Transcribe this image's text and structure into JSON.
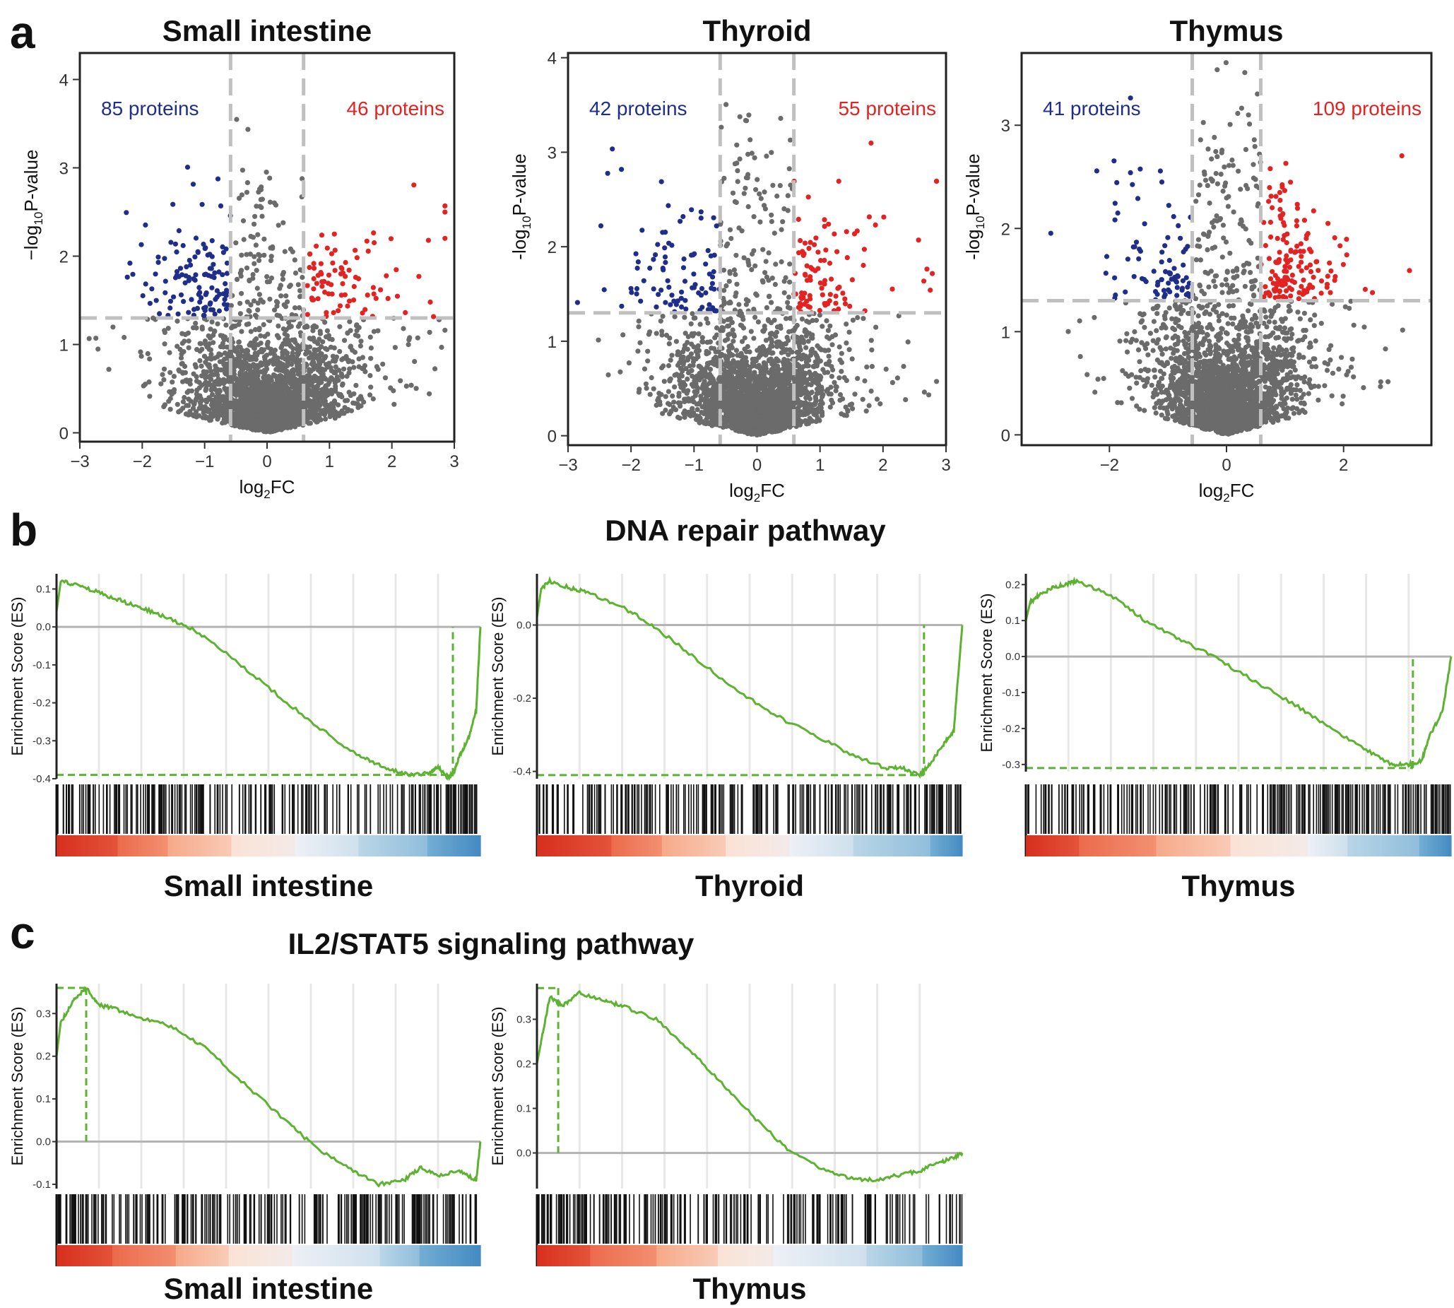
{
  "panel_labels": [
    "a",
    "b",
    "c"
  ],
  "sections": {
    "b_title": "DNA repair pathway",
    "c_title": "IL2/STAT5 signaling pathway"
  },
  "colors": {
    "down": "#1f2e8a",
    "up": "#e32222",
    "neutral": "#6b6b6b",
    "threshold": "#c0c0c0",
    "es_line": "#5db230",
    "zero_line": "#b3b3b3",
    "heat_red": "#d7301f",
    "heat_blue": "#2171b5"
  },
  "chart_data": [
    {
      "type": "scatter",
      "title": "Small intestine",
      "xlabel_base": "log",
      "xlabel_sub": "2",
      "xlabel_rest": "FC",
      "ylabel_pre": "−log",
      "ylabel_sub": "10",
      "ylabel_rest": "P-value",
      "xlim": [
        -3.0,
        3.0
      ],
      "ylim": [
        -0.1,
        4.3
      ],
      "xticks": [
        -3,
        -2,
        -1,
        0,
        1,
        2,
        3
      ],
      "yticks": [
        0,
        1,
        2,
        3,
        4
      ],
      "fc_threshold": 0.585,
      "p_threshold": 1.3,
      "down_count": "85 proteins",
      "up_count": "46 proteins",
      "max_y": 3.6,
      "seed": 11
    },
    {
      "type": "scatter",
      "title": "Thyroid",
      "xlabel_base": "log",
      "xlabel_sub": "2",
      "xlabel_rest": "FC",
      "ylabel_pre": "-log",
      "ylabel_sub": "10",
      "ylabel_rest": "P-value",
      "xlim": [
        -3.0,
        3.0
      ],
      "ylim": [
        -0.1,
        4.05
      ],
      "xticks": [
        -3,
        -2,
        -1,
        0,
        1,
        2,
        3
      ],
      "yticks": [
        0,
        1,
        2,
        3,
        4
      ],
      "fc_threshold": 0.585,
      "p_threshold": 1.3,
      "down_count": "42 proteins",
      "up_count": "55 proteins",
      "max_y": 3.8,
      "seed": 23
    },
    {
      "type": "scatter",
      "title": "Thymus",
      "xlabel_base": "log",
      "xlabel_sub": "2",
      "xlabel_rest": "FC",
      "ylabel_pre": "-log",
      "ylabel_sub": "10",
      "ylabel_rest": "P-value",
      "xlim": [
        -3.5,
        3.5
      ],
      "ylim": [
        -0.1,
        3.7
      ],
      "xticks": [
        -2,
        0,
        2
      ],
      "yticks": [
        0,
        1,
        2,
        3
      ],
      "fc_threshold": 0.585,
      "p_threshold": 1.3,
      "down_count": "41 proteins",
      "up_count": "109 proteins",
      "max_y": 3.65,
      "seed": 37
    },
    {
      "type": "line",
      "section": "DNA repair pathway",
      "name": "Small intestine",
      "ylabel": "Enrichment Score (ES)",
      "ylim": [
        -0.4,
        0.14
      ],
      "yticks": [
        -0.4,
        -0.3,
        -0.2,
        -0.1,
        0.0,
        0.1
      ],
      "ytick_labels": [
        "-0.4",
        "-0.3",
        "-0.2",
        "-0.1",
        "0.0",
        "0.1"
      ],
      "points": [
        [
          0,
          0.04
        ],
        [
          0.01,
          0.12
        ],
        [
          0.05,
          0.11
        ],
        [
          0.1,
          0.09
        ],
        [
          0.15,
          0.07
        ],
        [
          0.2,
          0.05
        ],
        [
          0.25,
          0.03
        ],
        [
          0.32,
          -0.005
        ],
        [
          0.4,
          -0.07
        ],
        [
          0.5,
          -0.16
        ],
        [
          0.6,
          -0.25
        ],
        [
          0.7,
          -0.33
        ],
        [
          0.75,
          -0.36
        ],
        [
          0.8,
          -0.38
        ],
        [
          0.84,
          -0.39
        ],
        [
          0.88,
          -0.385
        ],
        [
          0.9,
          -0.37
        ],
        [
          0.92,
          -0.395
        ],
        [
          0.935,
          -0.39
        ],
        [
          0.95,
          -0.34
        ],
        [
          0.97,
          -0.3
        ],
        [
          0.99,
          -0.22
        ],
        [
          1.0,
          0.0
        ]
      ],
      "es_extreme": -0.39,
      "extreme_position": 0.935,
      "hit_seed": 3,
      "hit_density": [
        0.55,
        0.5,
        0.7,
        0.55,
        0.45,
        0.6,
        0.35,
        0.3,
        0.75,
        0.9
      ],
      "heat_stops": [
        0.14,
        0.26,
        0.41,
        0.56,
        0.71,
        0.87,
        1.0
      ]
    },
    {
      "type": "line",
      "section": "DNA repair pathway",
      "name": "Thyroid",
      "ylabel": "Enrichment Score (ES)",
      "ylim": [
        -0.42,
        0.14
      ],
      "yticks": [
        -0.4,
        -0.2,
        0.0
      ],
      "ytick_labels": [
        "-0.4",
        "-0.2",
        "0.0"
      ],
      "points": [
        [
          0,
          0.02
        ],
        [
          0.01,
          0.1
        ],
        [
          0.03,
          0.12
        ],
        [
          0.08,
          0.1
        ],
        [
          0.12,
          0.09
        ],
        [
          0.2,
          0.05
        ],
        [
          0.27,
          0.0
        ],
        [
          0.35,
          -0.07
        ],
        [
          0.45,
          -0.16
        ],
        [
          0.55,
          -0.24
        ],
        [
          0.65,
          -0.3
        ],
        [
          0.75,
          -0.36
        ],
        [
          0.82,
          -0.39
        ],
        [
          0.86,
          -0.39
        ],
        [
          0.9,
          -0.41
        ],
        [
          0.93,
          -0.37
        ],
        [
          0.96,
          -0.32
        ],
        [
          0.98,
          -0.29
        ],
        [
          1.0,
          0.0
        ]
      ],
      "es_extreme": -0.41,
      "extreme_position": 0.91,
      "hit_seed": 5,
      "hit_density": [
        0.45,
        0.55,
        0.65,
        0.6,
        0.5,
        0.45,
        0.5,
        0.55,
        0.65,
        0.85
      ],
      "heat_stops": [
        0.17,
        0.29,
        0.44,
        0.59,
        0.74,
        0.92,
        1.0
      ]
    },
    {
      "type": "line",
      "section": "DNA repair pathway",
      "name": "Thymus",
      "ylabel": "Enrichment Score (ES)",
      "ylim": [
        -0.32,
        0.23
      ],
      "yticks": [
        -0.3,
        -0.2,
        -0.1,
        0.0,
        0.1,
        0.2
      ],
      "ytick_labels": [
        "-0.3",
        "-0.2",
        "-0.1",
        "0.0",
        "0.1",
        "0.2"
      ],
      "points": [
        [
          0,
          0.1
        ],
        [
          0.01,
          0.15
        ],
        [
          0.03,
          0.17
        ],
        [
          0.06,
          0.19
        ],
        [
          0.09,
          0.2
        ],
        [
          0.12,
          0.21
        ],
        [
          0.2,
          0.17
        ],
        [
          0.28,
          0.1
        ],
        [
          0.36,
          0.05
        ],
        [
          0.44,
          0.0
        ],
        [
          0.54,
          -0.07
        ],
        [
          0.64,
          -0.14
        ],
        [
          0.72,
          -0.2
        ],
        [
          0.8,
          -0.26
        ],
        [
          0.86,
          -0.3
        ],
        [
          0.9,
          -0.3
        ],
        [
          0.93,
          -0.29
        ],
        [
          0.95,
          -0.22
        ],
        [
          0.98,
          -0.15
        ],
        [
          1.0,
          0.0
        ]
      ],
      "es_extreme": -0.31,
      "extreme_position": 0.91,
      "hit_seed": 7,
      "hit_density": [
        0.5,
        0.55,
        0.5,
        0.6,
        0.45,
        0.55,
        0.7,
        0.8,
        0.7,
        0.85
      ],
      "heat_stops": [
        0.12,
        0.3,
        0.48,
        0.66,
        0.75,
        0.92,
        1.0
      ]
    },
    {
      "type": "line",
      "section": "IL2/STAT5 signaling pathway",
      "name": "Small intestine",
      "ylabel": "Enrichment Score (ES)",
      "ylim": [
        -0.11,
        0.37
      ],
      "yticks": [
        -0.1,
        0.0,
        0.1,
        0.2,
        0.3
      ],
      "ytick_labels": [
        "-0.1",
        "0.0",
        "0.1",
        "0.2",
        "0.3"
      ],
      "points": [
        [
          0,
          0.2
        ],
        [
          0.01,
          0.28
        ],
        [
          0.04,
          0.33
        ],
        [
          0.07,
          0.36
        ],
        [
          0.1,
          0.32
        ],
        [
          0.14,
          0.31
        ],
        [
          0.2,
          0.29
        ],
        [
          0.27,
          0.27
        ],
        [
          0.35,
          0.22
        ],
        [
          0.45,
          0.13
        ],
        [
          0.55,
          0.04
        ],
        [
          0.62,
          -0.02
        ],
        [
          0.7,
          -0.07
        ],
        [
          0.76,
          -0.1
        ],
        [
          0.82,
          -0.09
        ],
        [
          0.86,
          -0.06
        ],
        [
          0.9,
          -0.08
        ],
        [
          0.95,
          -0.07
        ],
        [
          0.99,
          -0.09
        ],
        [
          1.0,
          0.0
        ]
      ],
      "es_extreme": 0.36,
      "extreme_position": 0.07,
      "hit_seed": 9,
      "hit_density": [
        0.95,
        0.45,
        0.6,
        0.75,
        0.5,
        0.45,
        0.6,
        0.7,
        0.75,
        0.45
      ],
      "heat_stops": [
        0.13,
        0.28,
        0.4,
        0.55,
        0.76,
        0.85,
        1.0
      ]
    },
    {
      "type": "line",
      "section": "IL2/STAT5 signaling pathway",
      "name": "Thymus",
      "ylabel": "Enrichment Score (ES)",
      "ylim": [
        -0.08,
        0.38
      ],
      "yticks": [
        0.0,
        0.1,
        0.2,
        0.3
      ],
      "ytick_labels": [
        "0.0",
        "0.1",
        "0.2",
        "0.3"
      ],
      "points": [
        [
          0,
          0.2
        ],
        [
          0.01,
          0.25
        ],
        [
          0.03,
          0.35
        ],
        [
          0.06,
          0.33
        ],
        [
          0.1,
          0.36
        ],
        [
          0.16,
          0.34
        ],
        [
          0.2,
          0.33
        ],
        [
          0.28,
          0.3
        ],
        [
          0.36,
          0.23
        ],
        [
          0.44,
          0.15
        ],
        [
          0.52,
          0.07
        ],
        [
          0.6,
          0.0
        ],
        [
          0.68,
          -0.04
        ],
        [
          0.75,
          -0.06
        ],
        [
          0.8,
          -0.06
        ],
        [
          0.85,
          -0.05
        ],
        [
          0.9,
          -0.04
        ],
        [
          0.95,
          -0.02
        ],
        [
          0.98,
          -0.01
        ],
        [
          1.0,
          0.0
        ]
      ],
      "es_extreme": 0.37,
      "extreme_position": 0.05,
      "hit_seed": 13,
      "hit_density": [
        0.9,
        0.75,
        0.55,
        0.6,
        0.6,
        0.35,
        0.5,
        0.6,
        0.35,
        0.3
      ],
      "heat_stops": [
        0.12,
        0.28,
        0.42,
        0.55,
        0.77,
        0.9,
        1.0
      ]
    }
  ]
}
